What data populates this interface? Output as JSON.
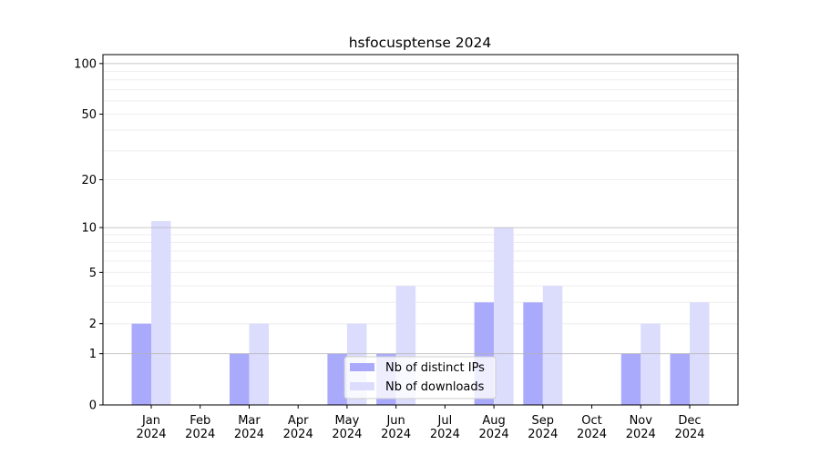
{
  "chart_data": {
    "type": "bar",
    "title": "hsfocusptense 2024",
    "xlabel": "",
    "ylabel": "",
    "yscale": "log(1+y)",
    "ylim": [
      0,
      113
    ],
    "yticks": [
      0,
      1,
      2,
      5,
      10,
      20,
      50,
      100
    ],
    "grid": true,
    "legend_position": "lower-center",
    "categories": [
      "Jan\n2024",
      "Feb\n2024",
      "Mar\n2024",
      "Apr\n2024",
      "May\n2024",
      "Jun\n2024",
      "Jul\n2024",
      "Aug\n2024",
      "Sep\n2024",
      "Oct\n2024",
      "Nov\n2024",
      "Dec\n2024"
    ],
    "series": [
      {
        "name": "Nb of distinct IPs",
        "color": "#aaaafd",
        "values": [
          2,
          0,
          1,
          0,
          1,
          1,
          0,
          3,
          3,
          0,
          1,
          1
        ]
      },
      {
        "name": "Nb of downloads",
        "color": "#dcdcfd",
        "values": [
          11,
          0,
          2,
          0,
          2,
          4,
          0,
          10,
          4,
          0,
          2,
          3
        ]
      }
    ]
  }
}
